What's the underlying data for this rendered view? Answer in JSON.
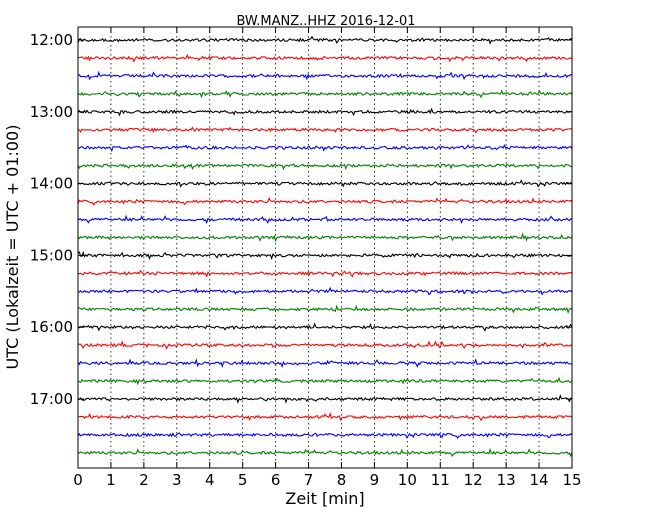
{
  "chart_data": {
    "type": "line",
    "title": "BW.MANZ..HHZ 2016-12-01",
    "xlabel": "Zeit  [min]",
    "ylabel": "UTC (Lokalzeit = UTC + 01:00)",
    "xlim": [
      0,
      15
    ],
    "x_ticks": [
      "0",
      "1",
      "2",
      "3",
      "4",
      "5",
      "6",
      "7",
      "8",
      "9",
      "10",
      "11",
      "12",
      "13",
      "14",
      "15"
    ],
    "y_tick_labels": [
      "12:00",
      "13:00",
      "14:00",
      "15:00",
      "16:00",
      "17:00"
    ],
    "grid": "vertical dotted lines at each minute",
    "trace_interval_minutes": 15,
    "series": [
      {
        "start": "12:00",
        "color": "#000000"
      },
      {
        "start": "12:15",
        "color": "#ff0000"
      },
      {
        "start": "12:30",
        "color": "#0000ff"
      },
      {
        "start": "12:45",
        "color": "#008000"
      },
      {
        "start": "13:00",
        "color": "#000000"
      },
      {
        "start": "13:15",
        "color": "#ff0000"
      },
      {
        "start": "13:30",
        "color": "#0000ff"
      },
      {
        "start": "13:45",
        "color": "#008000"
      },
      {
        "start": "14:00",
        "color": "#000000"
      },
      {
        "start": "14:15",
        "color": "#ff0000"
      },
      {
        "start": "14:30",
        "color": "#0000ff"
      },
      {
        "start": "14:45",
        "color": "#008000"
      },
      {
        "start": "15:00",
        "color": "#000000"
      },
      {
        "start": "15:15",
        "color": "#ff0000"
      },
      {
        "start": "15:30",
        "color": "#0000ff"
      },
      {
        "start": "15:45",
        "color": "#008000"
      },
      {
        "start": "16:00",
        "color": "#000000"
      },
      {
        "start": "16:15",
        "color": "#ff0000"
      },
      {
        "start": "16:30",
        "color": "#0000ff"
      },
      {
        "start": "16:45",
        "color": "#008000"
      },
      {
        "start": "17:00",
        "color": "#000000"
      },
      {
        "start": "17:15",
        "color": "#ff0000"
      },
      {
        "start": "17:30",
        "color": "#0000ff"
      },
      {
        "start": "17:45",
        "color": "#008000"
      }
    ]
  }
}
